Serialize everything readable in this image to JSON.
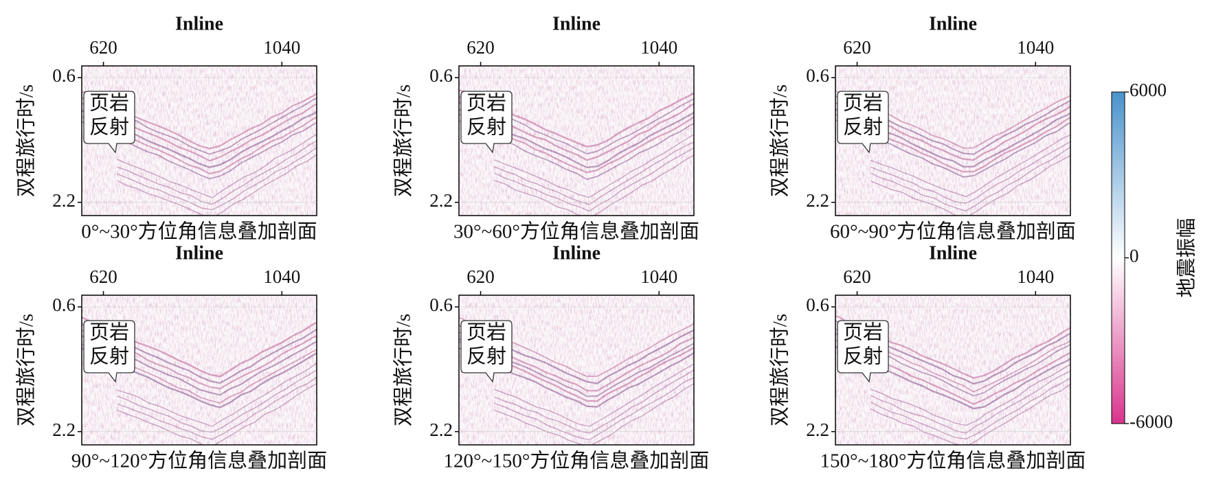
{
  "chart_data": [
    {
      "type": "seismic",
      "title": "Inline",
      "xlabel": "0°~30°方位角信息叠加剖面",
      "ylabel": "双程旅行时/s",
      "annotation": [
        "页岩",
        "反射"
      ],
      "xlim": [
        569,
        1122
      ],
      "xticks": [
        620,
        1040
      ],
      "ylim": [
        0.45,
        2.37
      ],
      "yticks": [
        0.6,
        2.2
      ],
      "invert_y": true
    },
    {
      "type": "seismic",
      "title": "Inline",
      "xlabel": "30°~60°方位角信息叠加剖面",
      "ylabel": "双程旅行时/s",
      "annotation": [
        "页岩",
        "反射"
      ],
      "xlim": [
        569,
        1122
      ],
      "xticks": [
        620,
        1040
      ],
      "ylim": [
        0.45,
        2.37
      ],
      "yticks": [
        0.6,
        2.2
      ],
      "invert_y": true
    },
    {
      "type": "seismic",
      "title": "Inline",
      "xlabel": "60°~90°方位角信息叠加剖面",
      "ylabel": "双程旅行时/s",
      "annotation": [
        "页岩",
        "反射"
      ],
      "xlim": [
        569,
        1122
      ],
      "xticks": [
        620,
        1040
      ],
      "ylim": [
        0.45,
        2.37
      ],
      "yticks": [
        0.6,
        2.2
      ],
      "invert_y": true
    },
    {
      "type": "seismic",
      "title": "Inline",
      "xlabel": "90°~120°方位角信息叠加剖面",
      "ylabel": "双程旅行时/s",
      "annotation": [
        "页岩",
        "反射"
      ],
      "xlim": [
        569,
        1122
      ],
      "xticks": [
        620,
        1040
      ],
      "ylim": [
        0.45,
        2.37
      ],
      "yticks": [
        0.6,
        2.2
      ],
      "invert_y": true
    },
    {
      "type": "seismic",
      "title": "Inline",
      "xlabel": "120°~150°方位角信息叠加剖面",
      "ylabel": "双程旅行时/s",
      "annotation": [
        "页岩",
        "反射"
      ],
      "xlim": [
        569,
        1122
      ],
      "xticks": [
        620,
        1040
      ],
      "ylim": [
        0.45,
        2.37
      ],
      "yticks": [
        0.6,
        2.2
      ],
      "invert_y": true
    },
    {
      "type": "seismic",
      "title": "Inline",
      "xlabel": "150°~180°方位角信息叠加剖面",
      "ylabel": "双程旅行时/s",
      "annotation": [
        "页岩",
        "反射"
      ],
      "xlim": [
        569,
        1122
      ],
      "xticks": [
        620,
        1040
      ],
      "ylim": [
        0.45,
        2.37
      ],
      "yticks": [
        0.6,
        2.2
      ],
      "invert_y": true
    },
    {
      "type": "colorbar",
      "label": "地震振幅",
      "range": [
        -6000,
        6000
      ],
      "ticks": [
        6000,
        0,
        -6000
      ],
      "colors": [
        "#d8348c",
        "#ffffff",
        "#4a92cc"
      ]
    }
  ]
}
